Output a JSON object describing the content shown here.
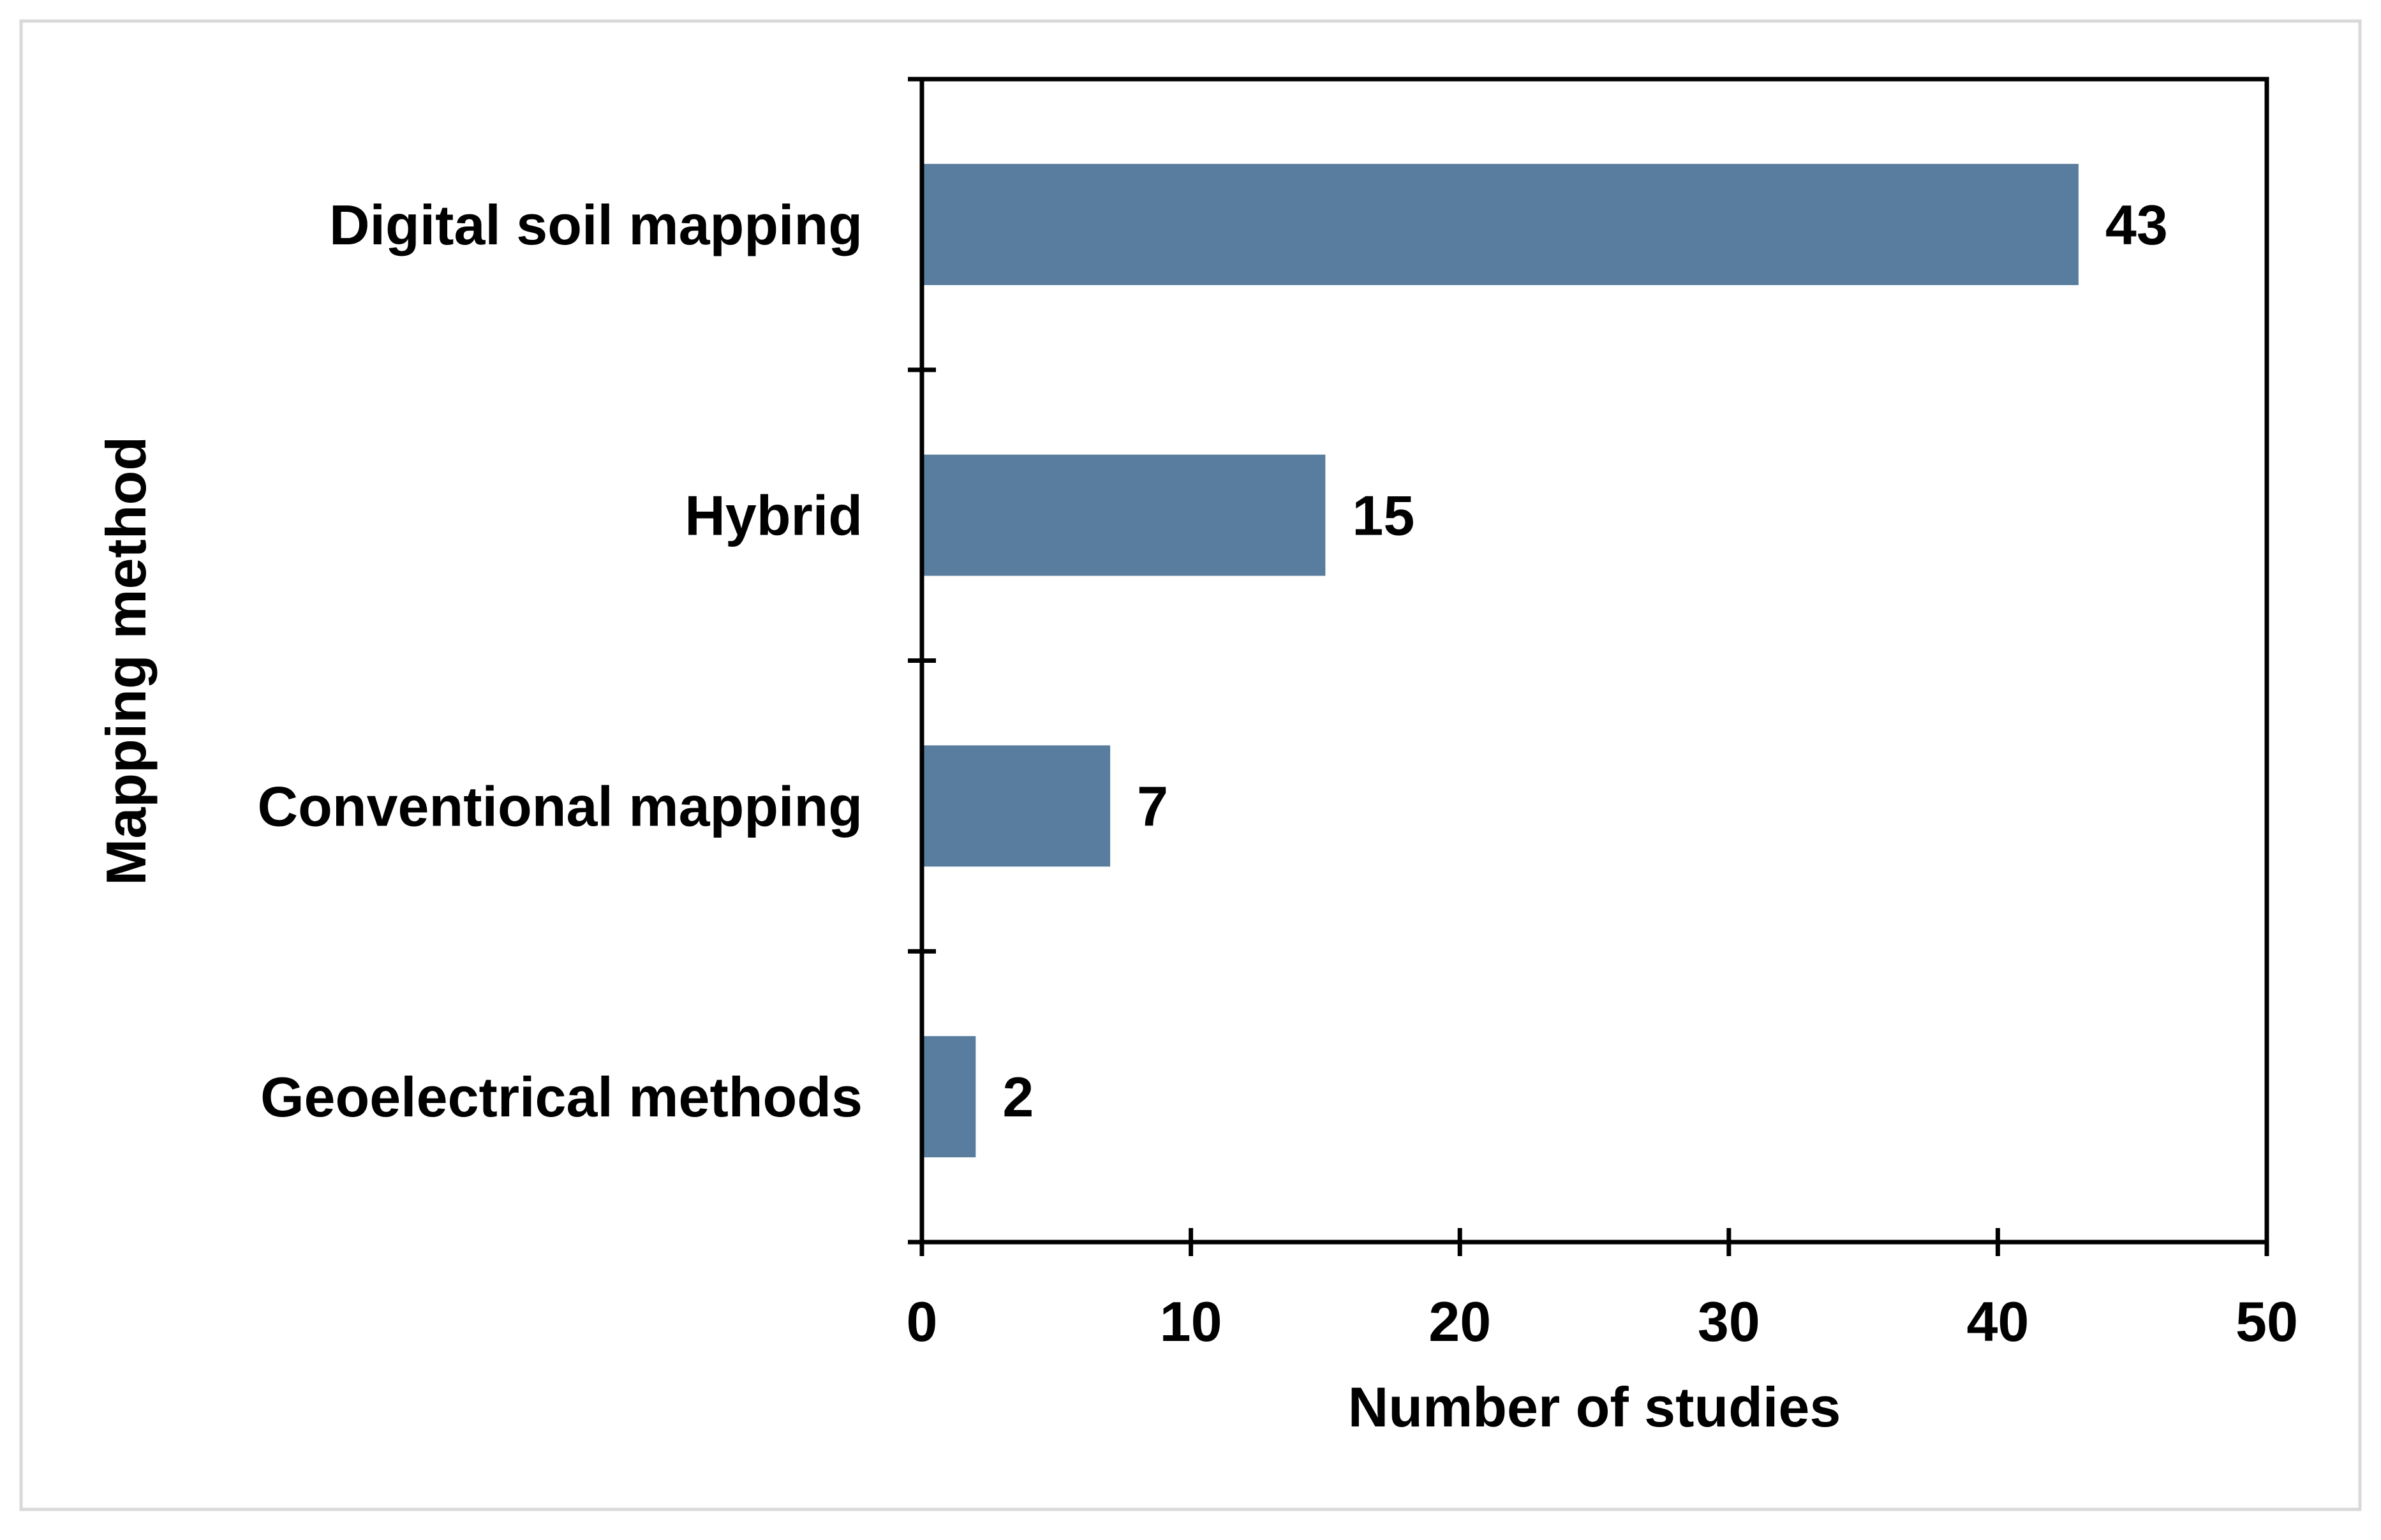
{
  "chart_data": {
    "type": "bar",
    "orientation": "horizontal",
    "categories": [
      "Digital soil mapping",
      "Hybrid",
      "Conventional mapping",
      "Geoelectrical methods"
    ],
    "values": [
      43,
      15,
      7,
      2
    ],
    "data_labels": [
      "43",
      "15",
      "7",
      "2"
    ],
    "title": "",
    "xlabel": "Number of studies",
    "ylabel": "Mapping method",
    "xlim": [
      0,
      50
    ],
    "xticks": [
      0,
      10,
      20,
      30,
      40,
      50
    ],
    "xtick_labels": [
      "0",
      "10",
      "20",
      "30",
      "40",
      "50"
    ],
    "grid": false,
    "legend": "none",
    "colors": {
      "bar": "#587d9e",
      "axis": "#000000",
      "frame": "#d9d9d9"
    }
  }
}
